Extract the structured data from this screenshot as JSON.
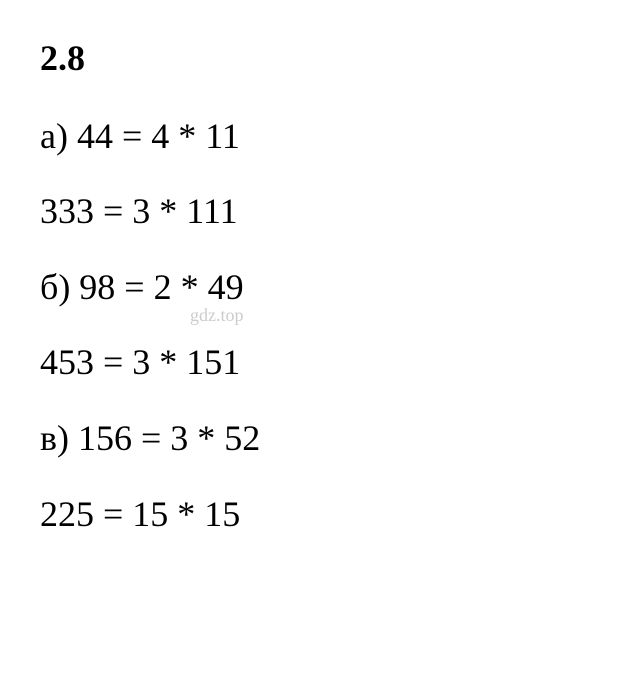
{
  "heading": "2.8",
  "lines": [
    "а) 44 = 4 * 11",
    "333 = 3 * 111",
    "б) 98 = 2 * 49",
    "453 = 3 * 151",
    "в) 156 = 3 * 52",
    "225 = 15 * 15"
  ],
  "watermark": "gdz.top",
  "watermark_line_index": 2,
  "colors": {
    "text": "#000000",
    "background": "#ffffff",
    "watermark": "#cccccc"
  },
  "typography": {
    "font_family": "Times New Roman",
    "font_size_pt": 27,
    "heading_weight": "bold",
    "line_weight": "normal"
  }
}
